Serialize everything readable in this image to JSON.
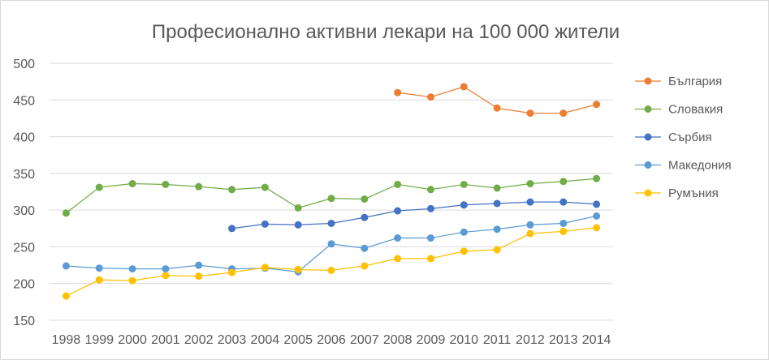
{
  "chart_data": {
    "type": "line",
    "title": "Професионално активни лекари на 100 000 жители",
    "xlabel": "",
    "ylabel": "",
    "categories": [
      "1998",
      "1999",
      "2000",
      "2001",
      "2002",
      "2003",
      "2004",
      "2005",
      "2006",
      "2007",
      "2008",
      "2009",
      "2010",
      "2011",
      "2012",
      "2013",
      "2014"
    ],
    "y_ticks": [
      "150",
      "200",
      "250",
      "300",
      "350",
      "400",
      "450",
      "500"
    ],
    "ylim": [
      150,
      500
    ],
    "grid": true,
    "legend_position": "right",
    "series": [
      {
        "name": "България",
        "color": "#ED7D31",
        "values": [
          null,
          null,
          null,
          null,
          null,
          null,
          null,
          null,
          null,
          null,
          460,
          454,
          468,
          439,
          432,
          432,
          444
        ]
      },
      {
        "name": "Словакия",
        "color": "#70AD47",
        "values": [
          296,
          331,
          336,
          335,
          332,
          328,
          331,
          303,
          316,
          315,
          335,
          328,
          335,
          330,
          336,
          339,
          343
        ]
      },
      {
        "name": "Сърбия",
        "color": "#4472C4",
        "values": [
          null,
          null,
          null,
          null,
          null,
          275,
          281,
          280,
          282,
          290,
          299,
          302,
          307,
          309,
          311,
          311,
          308
        ]
      },
      {
        "name": "Македония",
        "color": "#5B9BD5",
        "values": [
          224,
          221,
          220,
          220,
          225,
          220,
          221,
          216,
          254,
          248,
          262,
          262,
          270,
          274,
          280,
          282,
          292
        ]
      },
      {
        "name": "Румъния",
        "color": "#FFC000",
        "values": [
          183,
          205,
          204,
          211,
          210,
          215,
          222,
          219,
          218,
          224,
          234,
          234,
          244,
          246,
          268,
          271,
          276
        ]
      }
    ]
  }
}
